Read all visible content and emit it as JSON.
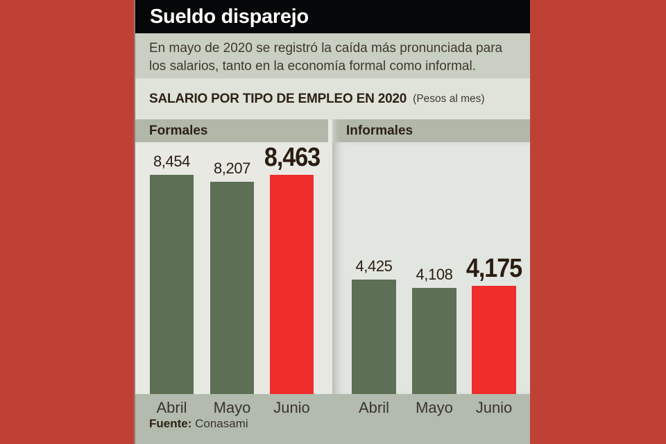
{
  "header": {
    "title": "Sueldo disparejo"
  },
  "intro": {
    "text": "En mayo de 2020 se registró la caída más pronunciada para los salarios, tanto en la economía formal como informal."
  },
  "subtitle": {
    "title": "SALARIO POR TIPO DE EMPLEO EN 2020",
    "unit": "(Pesos al mes)"
  },
  "source": {
    "label": "Fuente:",
    "value": "Conasami"
  },
  "colors": {
    "page_background": "#bf4136",
    "header_background": "#050708",
    "header_text": "#ffffff",
    "intro_background": "#c9cfc2",
    "subtitle_background": "#dfe3d9",
    "group_band_background": "#b1b8aa",
    "chart_background_left": "#e8e9e3",
    "chart_background_right": "#e2e6e0",
    "footer_background": "#b2bbad",
    "bar_green": "#5d6f54",
    "bar_red": "#ef2d2a",
    "text_dark": "#2b1c12"
  },
  "chart_data": {
    "type": "bar",
    "title": "SALARIO POR TIPO DE EMPLEO EN 2020",
    "unit": "Pesos al mes",
    "categories": [
      "Abril",
      "Mayo",
      "Junio"
    ],
    "groups": [
      {
        "name": "Formales",
        "values": [
          8454,
          8207,
          8463
        ]
      },
      {
        "name": "Informales",
        "values": [
          4425,
          4108,
          4175
        ]
      }
    ],
    "highlight_category": "Junio",
    "ylim": [
      0,
      8463
    ],
    "grid": false,
    "legend": false,
    "value_labels_shown": true
  }
}
